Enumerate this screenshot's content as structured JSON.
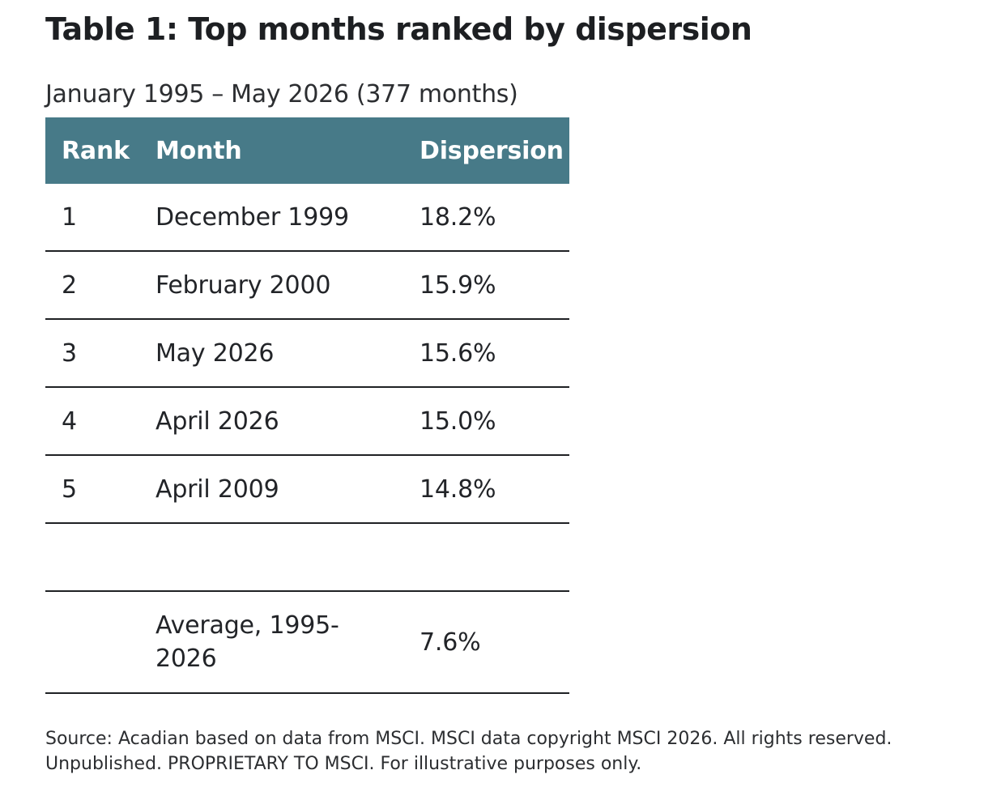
{
  "title": "Table 1: Top months ranked by dispersion",
  "subtitle": "January 1995 – May 2026 (377 months)",
  "table": {
    "headers": {
      "rank": "Rank",
      "month": "Month",
      "dispersion": "Dispersion"
    },
    "header_color": "#477a88",
    "rows": [
      {
        "rank": "1",
        "month": "December 1999",
        "dispersion": "18.2%"
      },
      {
        "rank": "2",
        "month": "February 2000",
        "dispersion": "15.9%"
      },
      {
        "rank": "3",
        "month": "May 2026",
        "dispersion": "15.6%"
      },
      {
        "rank": "4",
        "month": "April 2026",
        "dispersion": "15.0%"
      },
      {
        "rank": "5",
        "month": "April 2009",
        "dispersion": "14.8%"
      }
    ],
    "average": {
      "label": "Average, 1995-2026",
      "value": "7.6%"
    }
  },
  "footnote": "Source: Acadian based on data from MSCI. MSCI data copyright MSCI 2026. All rights reserved. Unpublished. PROPRIETARY TO MSCI. For illustrative purposes only."
}
